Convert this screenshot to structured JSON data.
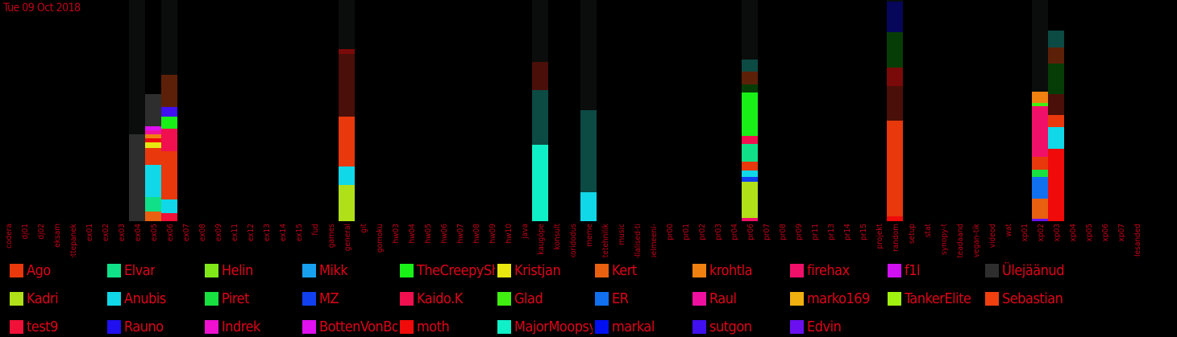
{
  "date_label": "Tue 09 Oct 2018",
  "chart_data": {
    "type": "bar",
    "stacked": true,
    "ylim": [
      0,
      275
    ],
    "xlabel": "",
    "ylabel": "",
    "background_color": "#0a0d0c",
    "text_color": "#c0001a",
    "categories": [
      "codera",
      "dj01",
      "dj02",
      "eksam",
      "ettepanek",
      "ex01",
      "ex02",
      "ex03",
      "ex04",
      "ex05",
      "ex06",
      "ex07",
      "ex08",
      "ex09",
      "ex11",
      "ex12",
      "ex13",
      "ex14",
      "ex15",
      "fud",
      "games",
      "general",
      "git",
      "gomoku",
      "hw03",
      "hw04",
      "hw05",
      "hw06",
      "hw07",
      "hw08",
      "hw09",
      "hw10",
      "java",
      "kaugöpe",
      "konsult",
      "koridodus",
      "meme",
      "mittetehnilik",
      "music",
      "ollalised-ti",
      "pelmeeni-",
      "pr00",
      "pr01",
      "pr02",
      "pr03",
      "pr04",
      "pr06",
      "pr07",
      "pr08",
      "pr09",
      "pr11",
      "pr13",
      "pr14",
      "pr15",
      "projekt",
      "random",
      "setup",
      "stat",
      "synopy-t",
      "teadaand",
      "vegan-tik",
      "videod",
      "wat",
      "xp01",
      "xp02",
      "xp03",
      "xp04",
      "xp05",
      "xp06",
      "xp07",
      "ülesanded"
    ],
    "background_columns": [
      "ex04",
      "ex06",
      "general",
      "kaugöpe",
      "meme",
      "pr06",
      "random",
      "xp02"
    ],
    "columns": [
      {
        "category": "ex04",
        "segments": [
          {
            "user": "Ülejäänud",
            "value": 108
          }
        ]
      },
      {
        "category": "ex05",
        "segments": [
          {
            "user": "Kert",
            "value": 12
          },
          {
            "user": "Elvar",
            "value": 18
          },
          {
            "user": "Anubis",
            "value": 40
          },
          {
            "user": "Ago",
            "value": 21
          },
          {
            "user": "Kristjan",
            "value": 7
          },
          {
            "user": "moth",
            "value": 5
          },
          {
            "user": "krohtla",
            "value": 5
          },
          {
            "user": "Raul",
            "value": 5
          },
          {
            "user": "BottenVonBot",
            "value": 5
          },
          {
            "user": "Ülejäänud",
            "value": 40
          }
        ]
      },
      {
        "category": "ex06",
        "segments": [
          {
            "user": "test9",
            "value": 10
          },
          {
            "user": "Anubis",
            "value": 17
          },
          {
            "user": "Ago",
            "value": 60
          },
          {
            "user": "Kaido.K",
            "value": 28
          },
          {
            "user": "TheCreepySh",
            "value": 15
          },
          {
            "user": "sutgon",
            "value": 12
          },
          {
            "user": "Cauldron",
            "value": 40
          }
        ]
      },
      {
        "category": "general",
        "segments": [
          {
            "user": "Kadri",
            "value": 45
          },
          {
            "user": "Anubis",
            "value": 23
          },
          {
            "user": "Ago",
            "value": 62
          },
          {
            "user": "Maroon",
            "value": 78
          },
          {
            "user": "Crimson",
            "value": 6
          }
        ]
      },
      {
        "category": "kaugöpe",
        "segments": [
          {
            "user": "MajorMoopsy",
            "value": 95
          },
          {
            "user": "Teal",
            "value": 68
          },
          {
            "user": "Maroon",
            "value": 35
          }
        ]
      },
      {
        "category": "meme",
        "segments": [
          {
            "user": "Anubis",
            "value": 36
          },
          {
            "user": "Teal",
            "value": 102
          }
        ]
      },
      {
        "category": "pr06",
        "segments": [
          {
            "user": "firehax",
            "value": 4
          },
          {
            "user": "Kadri",
            "value": 45
          },
          {
            "user": "MZ",
            "value": 6
          },
          {
            "user": "Anubis",
            "value": 8
          },
          {
            "user": "Ago",
            "value": 11
          },
          {
            "user": "Elvar",
            "value": 22
          },
          {
            "user": "Kaido.K",
            "value": 10
          },
          {
            "user": "TheCreepySh",
            "value": 54
          },
          {
            "user": "DarkGreen",
            "value": 10
          },
          {
            "user": "Cauldron",
            "value": 16
          },
          {
            "user": "Teal",
            "value": 15
          }
        ]
      },
      {
        "category": "random",
        "segments": [
          {
            "user": "moth",
            "value": 6
          },
          {
            "user": "Ago",
            "value": 119
          },
          {
            "user": "Maroon",
            "value": 43
          },
          {
            "user": "Crimson",
            "value": 23
          },
          {
            "user": "DarkGreen",
            "value": 44
          },
          {
            "user": "Navy",
            "value": 38
          }
        ]
      },
      {
        "category": "xp02",
        "segments": [
          {
            "user": "Edvin",
            "value": 3
          },
          {
            "user": "Kert",
            "value": 25
          },
          {
            "user": "ER",
            "value": 27
          },
          {
            "user": "Piret",
            "value": 9
          },
          {
            "user": "Ago",
            "value": 16
          },
          {
            "user": "firehax",
            "value": 63
          },
          {
            "user": "Glad",
            "value": 4
          },
          {
            "user": "krohtla",
            "value": 14
          }
        ]
      },
      {
        "category": "xp03",
        "segments": [
          {
            "user": "moth",
            "value": 90
          },
          {
            "user": "Anubis",
            "value": 27
          },
          {
            "user": "Ago",
            "value": 15
          },
          {
            "user": "Maroon",
            "value": 26
          },
          {
            "user": "DarkGreen",
            "value": 38
          },
          {
            "user": "Cauldron",
            "value": 20
          },
          {
            "user": "Teal",
            "value": 21
          }
        ]
      }
    ],
    "extra_colors": {
      "Maroon": "#4a0f08",
      "Crimson": "#7a0a0a",
      "Teal": "#0c4a44",
      "DarkGreen": "#063d06",
      "Navy": "#06065a",
      "Cauldron": "#5c2008"
    },
    "legend": [
      {
        "label": "Ago",
        "color": "#e8380c"
      },
      {
        "label": "Elvar",
        "color": "#10e088"
      },
      {
        "label": "Helin",
        "color": "#80e818"
      },
      {
        "label": "Mikk",
        "color": "#18a0f0"
      },
      {
        "label": "TheCreepySh",
        "color": "#18f018"
      },
      {
        "label": "Kristjan",
        "color": "#e8e810"
      },
      {
        "label": "Kert",
        "color": "#e86010"
      },
      {
        "label": "krohtla",
        "color": "#f08010"
      },
      {
        "label": "firehax",
        "color": "#f0106a"
      },
      {
        "label": "f1l",
        "color": "#d010f0"
      },
      {
        "label": "Ülejäänud",
        "color": "#2e2e2e"
      },
      {
        "label": "Kadri",
        "color": "#b0e018"
      },
      {
        "label": "Anubis",
        "color": "#10d8e8"
      },
      {
        "label": "Piret",
        "color": "#18e040"
      },
      {
        "label": "MZ",
        "color": "#1040f0"
      },
      {
        "label": "Kaido.K",
        "color": "#f01050"
      },
      {
        "label": "Glad",
        "color": "#40f010"
      },
      {
        "label": "ER",
        "color": "#1070f0"
      },
      {
        "label": "Raul",
        "color": "#f010a0"
      },
      {
        "label": "marko169",
        "color": "#f0b010"
      },
      {
        "label": "TankerElite",
        "color": "#a0f010"
      },
      {
        "label": "Sebastian",
        "color": "#f04010"
      },
      {
        "label": "test9",
        "color": "#f01038"
      },
      {
        "label": "Rauno",
        "color": "#2010f0"
      },
      {
        "label": "Indrek",
        "color": "#f010d0"
      },
      {
        "label": "BottenVonBot",
        "color": "#e010f0"
      },
      {
        "label": "moth",
        "color": "#f00a0a"
      },
      {
        "label": "MajorMoopsy",
        "color": "#10f0c8"
      },
      {
        "label": "markal",
        "color": "#0010f0"
      },
      {
        "label": "sutgon",
        "color": "#4010f0"
      },
      {
        "label": "Edvin",
        "color": "#6a10f0"
      }
    ]
  }
}
